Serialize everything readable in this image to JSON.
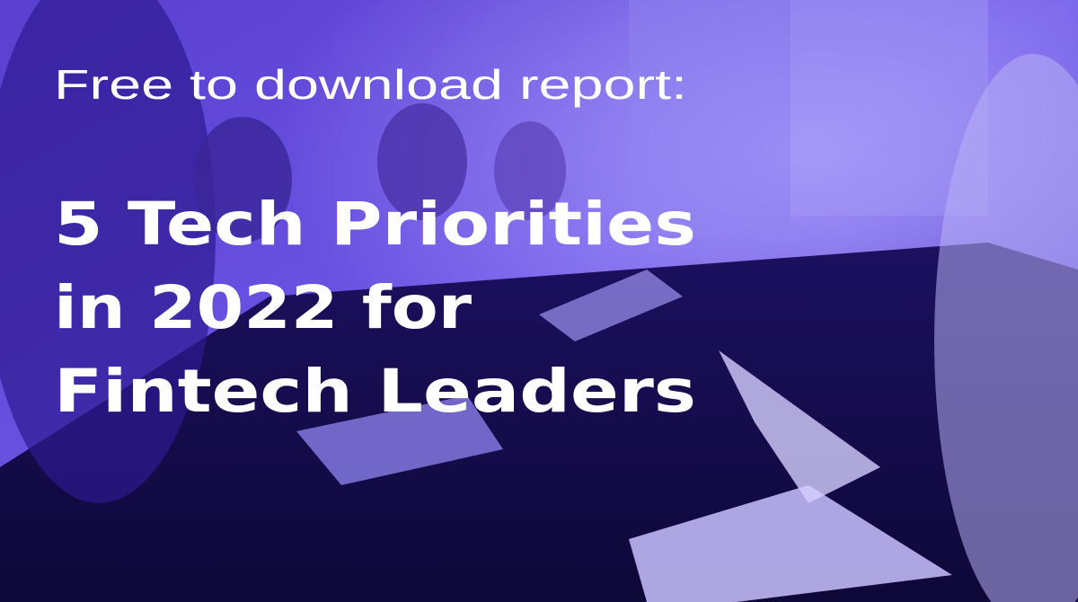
{
  "banner": {
    "subtitle": "Free to download report:",
    "title_lines": [
      "5 Tech Priorities",
      "in 2022 for",
      "Fintech Leaders"
    ]
  }
}
